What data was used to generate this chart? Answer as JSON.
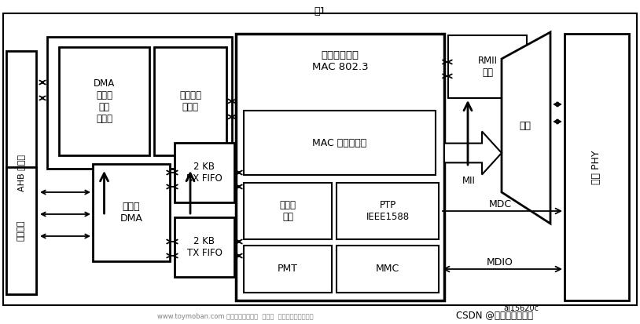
{
  "bg_color": "#ffffff",
  "watermark": "www.toymoban.com 网络图片仅供展示  非存储  如有侵权请联系删除",
  "csdn_text": "CSDN @时光飞逝的日子",
  "ai_text": "ai15620c",
  "title": "图1"
}
